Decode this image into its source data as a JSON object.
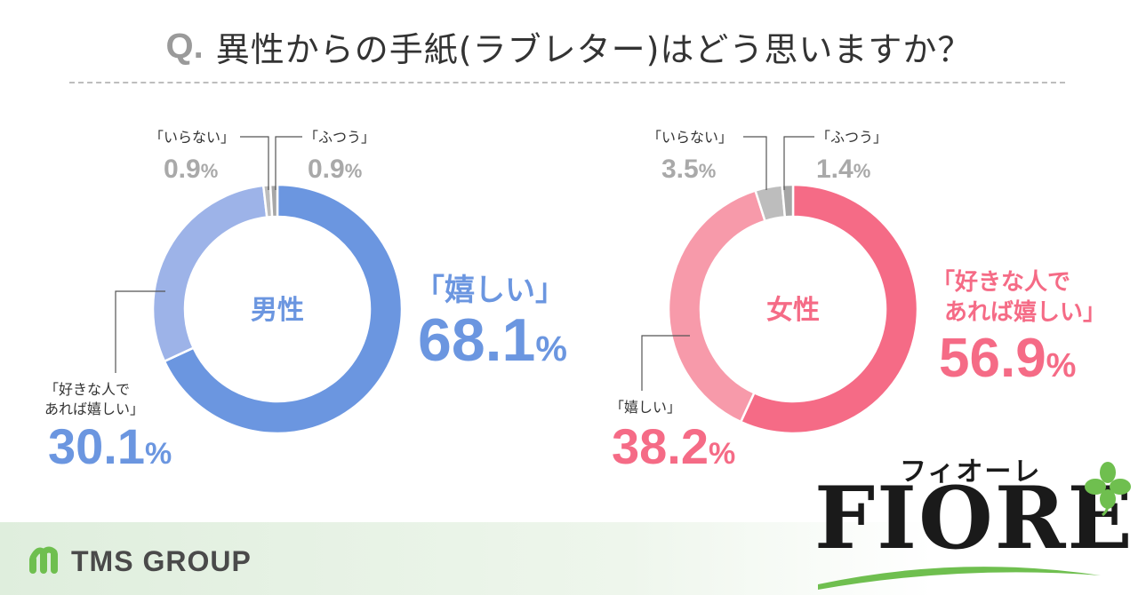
{
  "question": {
    "mark": "Q.",
    "text": "異性からの手紙(ラブレター)はどう思いますか？"
  },
  "chart_data": [
    {
      "type": "pie",
      "variant": "donut",
      "center_label": "男性",
      "slices": [
        {
          "label": "「嬉しい」",
          "value": 68.1,
          "value_text": "68.1",
          "color": "#6b96e0"
        },
        {
          "label": "「好きな人で\nあれば嬉しい」",
          "label_lines": [
            "「好きな人で",
            "あれば嬉しい」"
          ],
          "value": 30.1,
          "value_text": "30.1",
          "color": "#9db3e8"
        },
        {
          "label": "「いらない」",
          "value": 0.9,
          "value_text": "0.9",
          "color": "#bdbdbd"
        },
        {
          "label": "「ふつう」",
          "value": 0.9,
          "value_text": "0.9",
          "color": "#a6a6a6"
        }
      ],
      "unit": "%"
    },
    {
      "type": "pie",
      "variant": "donut",
      "center_label": "女性",
      "slices": [
        {
          "label": "「好きな人で\nあれば嬉しい」",
          "label_lines": [
            "「好きな人で",
            "あれば嬉しい」"
          ],
          "value": 56.9,
          "value_text": "56.9",
          "color": "#f56b86"
        },
        {
          "label": "「嬉しい」",
          "value": 38.2,
          "value_text": "38.2",
          "color": "#f79aaa"
        },
        {
          "label": "「いらない」",
          "value": 3.5,
          "value_text": "3.5",
          "color": "#bdbdbd"
        },
        {
          "label": "「ふつう」",
          "value": 1.4,
          "value_text": "1.4",
          "color": "#a6a6a6"
        }
      ],
      "unit": "%"
    }
  ],
  "colors": {
    "male_accent": "#6b96e0",
    "female_accent": "#f56b86",
    "muted": "#a9a9a9"
  },
  "logos": {
    "tms_icon": "tms-m-logo-icon",
    "tms_text": "TMS GROUP",
    "fiore_kana": "フィオーレ",
    "fiore_word": "FIORE",
    "fiore_leaf_icon": "clover-leaf-icon"
  }
}
